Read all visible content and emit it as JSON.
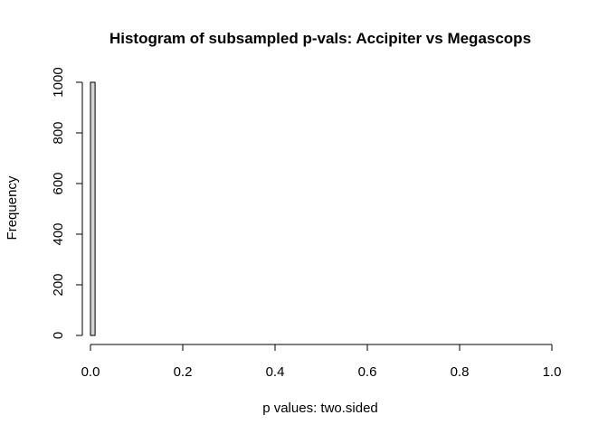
{
  "chart_data": {
    "type": "bar",
    "title": "Histogram of subsampled p-vals: Accipiter vs Megascops",
    "xlabel": "p values: two.sided",
    "ylabel": "Frequency",
    "xlim": [
      0,
      1
    ],
    "ylim": [
      0,
      1000
    ],
    "x_ticks": [
      "0.0",
      "0.2",
      "0.4",
      "0.6",
      "0.8",
      "1.0"
    ],
    "y_ticks": [
      "0",
      "200",
      "400",
      "600",
      "800",
      "1000"
    ],
    "bin_width": 0.01,
    "bins": [
      {
        "start": 0.0,
        "end": 0.01,
        "count": 1000
      }
    ],
    "grid": false,
    "legend": "none",
    "bar_color": "#d3d3d3"
  }
}
